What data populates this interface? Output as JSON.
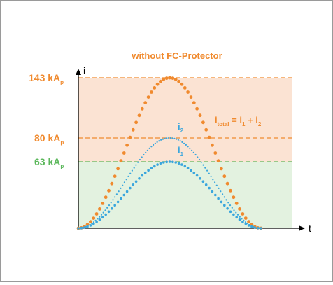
{
  "title": "without FC-Protector",
  "levels": [
    {
      "value": "143",
      "unit": "kA",
      "sub": "p"
    },
    {
      "value": "80",
      "unit": "kA",
      "sub": "p"
    },
    {
      "value": "63",
      "unit": "kA",
      "sub": "p"
    }
  ],
  "axes": {
    "y_label": "i",
    "x_label": "t"
  },
  "curve_labels": {
    "total": {
      "main": "i",
      "sub": "total",
      "eq": " = i",
      "s1": "1",
      "plus": " + i",
      "s2": "2"
    },
    "i2": {
      "main": "i",
      "sub": "2"
    },
    "i1": {
      "main": "i",
      "sub": "1"
    }
  },
  "chart_data": {
    "type": "line",
    "y_ticks": [
      143,
      80,
      63
    ],
    "y_unit": "kAp",
    "series": [
      {
        "name": "itotal = i1 + i2",
        "peak": 143,
        "color": "#f08a2e"
      },
      {
        "name": "i2",
        "peak": 80,
        "color": "#3aa6dd"
      },
      {
        "name": "i1",
        "peak": 63,
        "color": "#3aa6dd"
      }
    ],
    "colors": {
      "orange": "#f08a2e",
      "green": "#5cb85c",
      "blue": "#3aa6dd",
      "orange_zone": "#fbe3d3",
      "green_zone": "#e3f2e0"
    }
  }
}
